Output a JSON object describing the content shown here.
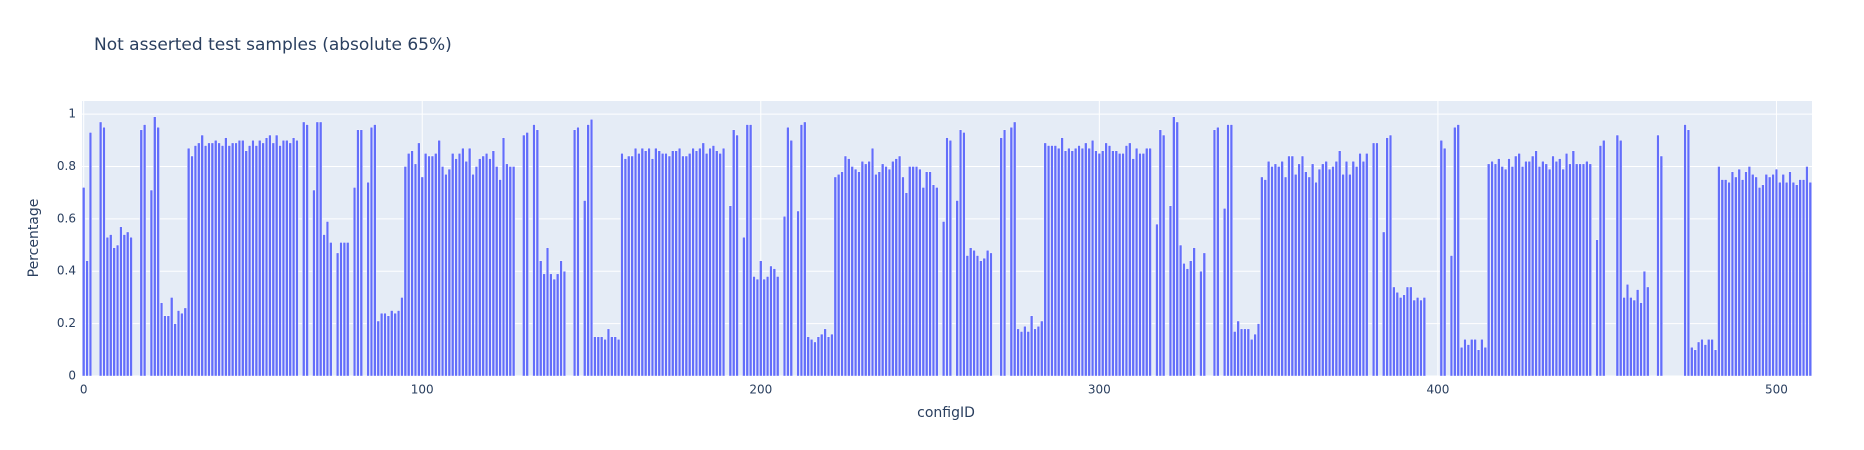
{
  "chart_data": {
    "type": "bar",
    "title": "Not asserted test samples (absolute 65%)",
    "x_label": "configID",
    "y_label": "Percentage",
    "color": "#636efa",
    "plot_bgcolor": "#e5ecf6",
    "grid": true,
    "xlim": [
      -0.5,
      510.5
    ],
    "xticks": [
      0,
      100,
      200,
      300,
      400,
      500
    ],
    "ylim": [
      0,
      1.05
    ],
    "yticks": [
      0,
      0.2,
      0.4,
      0.6,
      0.8,
      1
    ],
    "x": [
      0,
      1,
      2,
      3,
      4,
      5,
      6,
      7,
      8,
      9,
      10,
      11,
      12,
      13,
      14,
      15,
      16,
      17,
      18,
      19,
      20,
      21,
      22,
      23,
      24,
      25,
      26,
      27,
      28,
      29,
      30,
      31,
      32,
      33,
      34,
      35,
      36,
      37,
      38,
      39,
      40,
      41,
      42,
      43,
      44,
      45,
      46,
      47,
      48,
      49,
      50,
      51,
      52,
      53,
      54,
      55,
      56,
      57,
      58,
      59,
      60,
      61,
      62,
      63,
      64,
      65,
      66,
      67,
      68,
      69,
      70,
      71,
      72,
      73,
      74,
      75,
      76,
      77,
      78,
      79,
      80,
      81,
      82,
      83,
      84,
      85,
      86,
      87,
      88,
      89,
      90,
      91,
      92,
      93,
      94,
      95,
      96,
      97,
      98,
      99,
      100,
      101,
      102,
      103,
      104,
      105,
      106,
      107,
      108,
      109,
      110,
      111,
      112,
      113,
      114,
      115,
      116,
      117,
      118,
      119,
      120,
      121,
      122,
      123,
      124,
      125,
      126,
      127,
      128,
      129,
      130,
      131,
      132,
      133,
      134,
      135,
      136,
      137,
      138,
      139,
      140,
      141,
      142,
      143,
      144,
      145,
      146,
      147,
      148,
      149,
      150,
      151,
      152,
      153,
      154,
      155,
      156,
      157,
      158,
      159,
      160,
      161,
      162,
      163,
      164,
      165,
      166,
      167,
      168,
      169,
      170,
      171,
      172,
      173,
      174,
      175,
      176,
      177,
      178,
      179,
      180,
      181,
      182,
      183,
      184,
      185,
      186,
      187,
      188,
      189,
      190,
      191,
      192,
      193,
      194,
      195,
      196,
      197,
      198,
      199,
      200,
      201,
      202,
      203,
      204,
      205,
      206,
      207,
      208,
      209,
      210,
      211,
      212,
      213,
      214,
      215,
      216,
      217,
      218,
      219,
      220,
      221,
      222,
      223,
      224,
      225,
      226,
      227,
      228,
      229,
      230,
      231,
      232,
      233,
      234,
      235,
      236,
      237,
      238,
      239,
      240,
      241,
      242,
      243,
      244,
      245,
      246,
      247,
      248,
      249,
      250,
      251,
      252,
      253,
      254,
      255,
      256,
      257,
      258,
      259,
      260,
      261,
      262,
      263,
      264,
      265,
      266,
      267,
      268,
      269,
      270,
      271,
      272,
      273,
      274,
      275,
      276,
      277,
      278,
      279,
      280,
      281,
      282,
      283,
      284,
      285,
      286,
      287,
      288,
      289,
      290,
      291,
      292,
      293,
      294,
      295,
      296,
      297,
      298,
      299,
      300,
      301,
      302,
      303,
      304,
      305,
      306,
      307,
      308,
      309,
      310,
      311,
      312,
      313,
      314,
      315,
      316,
      317,
      318,
      319,
      320,
      321,
      322,
      323,
      324,
      325,
      326,
      327,
      328,
      329,
      330,
      331,
      332,
      333,
      334,
      335,
      336,
      337,
      338,
      339,
      340,
      341,
      342,
      343,
      344,
      345,
      346,
      347,
      348,
      349,
      350,
      351,
      352,
      353,
      354,
      355,
      356,
      357,
      358,
      359,
      360,
      361,
      362,
      363,
      364,
      365,
      366,
      367,
      368,
      369,
      370,
      371,
      372,
      373,
      374,
      375,
      376,
      377,
      378,
      379,
      380,
      381,
      382,
      383,
      384,
      385,
      386,
      387,
      388,
      389,
      390,
      391,
      392,
      393,
      394,
      395,
      396,
      397,
      398,
      399,
      400,
      401,
      402,
      403,
      404,
      405,
      406,
      407,
      408,
      409,
      410,
      411,
      412,
      413,
      414,
      415,
      416,
      417,
      418,
      419,
      420,
      421,
      422,
      423,
      424,
      425,
      426,
      427,
      428,
      429,
      430,
      431,
      432,
      433,
      434,
      435,
      436,
      437,
      438,
      439,
      440,
      441,
      442,
      443,
      444,
      445,
      446,
      447,
      448,
      449,
      450,
      451,
      452,
      453,
      454,
      455,
      456,
      457,
      458,
      459,
      460,
      461,
      462,
      463,
      464,
      465,
      466,
      467,
      468,
      469,
      470,
      471,
      472,
      473,
      474,
      475,
      476,
      477,
      478,
      479,
      480,
      481,
      482,
      483,
      484,
      485,
      486,
      487,
      488,
      489,
      490,
      491,
      492,
      493,
      494,
      495,
      496,
      497,
      498,
      499,
      500,
      501,
      502,
      503,
      504,
      505,
      506,
      507,
      508,
      509,
      510
    ],
    "values": [
      0.72,
      0.44,
      0.93,
      null,
      null,
      0.97,
      0.95,
      0.53,
      0.54,
      0.49,
      0.5,
      0.57,
      0.54,
      0.55,
      0.53,
      null,
      null,
      0.94,
      0.96,
      null,
      0.71,
      0.99,
      0.95,
      0.28,
      0.23,
      0.23,
      0.3,
      0.2,
      0.25,
      0.24,
      0.26,
      0.87,
      0.84,
      0.88,
      0.89,
      0.92,
      0.88,
      0.89,
      0.89,
      0.9,
      0.89,
      0.88,
      0.91,
      0.88,
      0.89,
      0.89,
      0.9,
      0.9,
      0.86,
      0.88,
      0.9,
      0.88,
      0.9,
      0.89,
      0.91,
      0.92,
      0.89,
      0.92,
      0.88,
      0.9,
      0.9,
      0.89,
      0.91,
      0.9,
      null,
      0.97,
      0.96,
      null,
      0.71,
      0.97,
      0.97,
      0.54,
      0.59,
      0.51,
      null,
      0.47,
      0.51,
      0.51,
      0.51,
      null,
      0.72,
      0.94,
      0.94,
      null,
      0.74,
      0.95,
      0.96,
      0.21,
      0.24,
      0.24,
      0.23,
      0.25,
      0.24,
      0.25,
      0.3,
      0.8,
      0.85,
      0.86,
      0.81,
      0.89,
      0.76,
      0.85,
      0.84,
      0.84,
      0.85,
      0.9,
      0.8,
      0.77,
      0.79,
      0.85,
      0.83,
      0.85,
      0.87,
      0.82,
      0.87,
      0.77,
      0.8,
      0.83,
      0.84,
      0.85,
      0.83,
      0.86,
      0.8,
      0.75,
      0.91,
      0.81,
      0.8,
      0.8,
      null,
      null,
      0.92,
      0.93,
      null,
      0.96,
      0.94,
      0.44,
      0.39,
      0.49,
      0.39,
      0.37,
      0.39,
      0.44,
      0.4,
      null,
      null,
      0.94,
      0.95,
      null,
      0.67,
      0.96,
      0.98,
      0.15,
      0.15,
      0.15,
      0.14,
      0.18,
      0.15,
      0.15,
      0.14,
      0.85,
      0.83,
      0.84,
      0.84,
      0.87,
      0.85,
      0.87,
      0.86,
      0.87,
      0.83,
      0.87,
      0.86,
      0.85,
      0.85,
      0.84,
      0.86,
      0.86,
      0.87,
      0.84,
      0.84,
      0.85,
      0.87,
      0.86,
      0.87,
      0.89,
      0.85,
      0.87,
      0.88,
      0.86,
      0.85,
      0.87,
      null,
      0.65,
      0.94,
      0.92,
      null,
      0.53,
      0.96,
      0.96,
      0.38,
      0.37,
      0.44,
      0.37,
      0.38,
      0.42,
      0.41,
      0.38,
      null,
      0.61,
      0.95,
      0.9,
      null,
      0.63,
      0.96,
      0.97,
      0.15,
      0.14,
      0.13,
      0.15,
      0.16,
      0.18,
      0.15,
      0.16,
      0.76,
      0.77,
      0.78,
      0.84,
      0.83,
      0.8,
      0.79,
      0.78,
      0.82,
      0.81,
      0.82,
      0.87,
      0.77,
      0.78,
      0.81,
      0.8,
      0.79,
      0.82,
      0.83,
      0.84,
      0.76,
      0.7,
      0.8,
      0.8,
      0.8,
      0.79,
      0.72,
      0.78,
      0.78,
      0.73,
      0.72,
      null,
      0.59,
      0.91,
      0.9,
      null,
      0.67,
      0.94,
      0.93,
      0.46,
      0.49,
      0.48,
      0.46,
      0.44,
      0.45,
      0.48,
      0.47,
      null,
      null,
      0.91,
      0.94,
      null,
      0.95,
      0.97,
      0.18,
      0.17,
      0.19,
      0.17,
      0.23,
      0.18,
      0.19,
      0.21,
      0.89,
      0.88,
      0.88,
      0.88,
      0.87,
      0.91,
      0.86,
      0.87,
      0.86,
      0.87,
      0.88,
      0.87,
      0.89,
      0.87,
      0.9,
      0.86,
      0.85,
      0.86,
      0.89,
      0.88,
      0.86,
      0.86,
      0.85,
      0.85,
      0.88,
      0.89,
      0.83,
      0.87,
      0.85,
      0.85,
      0.87,
      0.87,
      null,
      0.58,
      0.94,
      0.92,
      null,
      0.65,
      0.99,
      0.97,
      0.5,
      0.43,
      0.41,
      0.44,
      0.49,
      null,
      0.4,
      0.47,
      null,
      null,
      0.94,
      0.95,
      null,
      0.64,
      0.96,
      0.96,
      0.17,
      0.21,
      0.18,
      0.18,
      0.18,
      0.14,
      0.16,
      0.2,
      0.76,
      0.75,
      0.82,
      0.8,
      0.81,
      0.8,
      0.82,
      0.76,
      0.84,
      0.84,
      0.77,
      0.81,
      0.84,
      0.78,
      0.76,
      0.81,
      0.74,
      0.79,
      0.81,
      0.82,
      0.79,
      0.8,
      0.82,
      0.86,
      0.77,
      0.82,
      0.77,
      0.82,
      0.8,
      0.85,
      0.82,
      0.85,
      null,
      0.89,
      0.89,
      null,
      0.55,
      0.91,
      0.92,
      0.34,
      0.32,
      0.3,
      0.31,
      0.34,
      0.34,
      0.29,
      0.3,
      0.29,
      0.3,
      null,
      null,
      null,
      null,
      0.9,
      0.87,
      null,
      0.46,
      0.95,
      0.96,
      0.11,
      0.14,
      0.12,
      0.14,
      0.14,
      0.1,
      0.14,
      0.11,
      0.81,
      0.82,
      0.81,
      0.83,
      0.8,
      0.79,
      0.83,
      0.8,
      0.84,
      0.85,
      0.8,
      0.82,
      0.82,
      0.84,
      0.86,
      0.8,
      0.82,
      0.81,
      0.79,
      0.84,
      0.82,
      0.83,
      0.79,
      0.85,
      0.81,
      0.86,
      0.81,
      0.81,
      0.81,
      0.82,
      0.81,
      null,
      0.52,
      0.88,
      0.9,
      null,
      null,
      null,
      0.92,
      0.9,
      0.3,
      0.35,
      0.3,
      0.29,
      0.33,
      0.28,
      0.4,
      0.34,
      null,
      null,
      0.92,
      0.84,
      null,
      null,
      null,
      null,
      null,
      null,
      0.96,
      0.94,
      0.11,
      0.1,
      0.13,
      0.14,
      0.12,
      0.14,
      0.14,
      0.1,
      0.8,
      0.75,
      0.75,
      0.74,
      0.78,
      0.76,
      0.79,
      0.75,
      0.78,
      0.8,
      0.77,
      0.76,
      0.72,
      0.73,
      0.77,
      0.76,
      0.77,
      0.79,
      0.74,
      0.77,
      0.74,
      0.78,
      0.74,
      0.73,
      0.75,
      0.75,
      0.8,
      0.74
    ]
  }
}
